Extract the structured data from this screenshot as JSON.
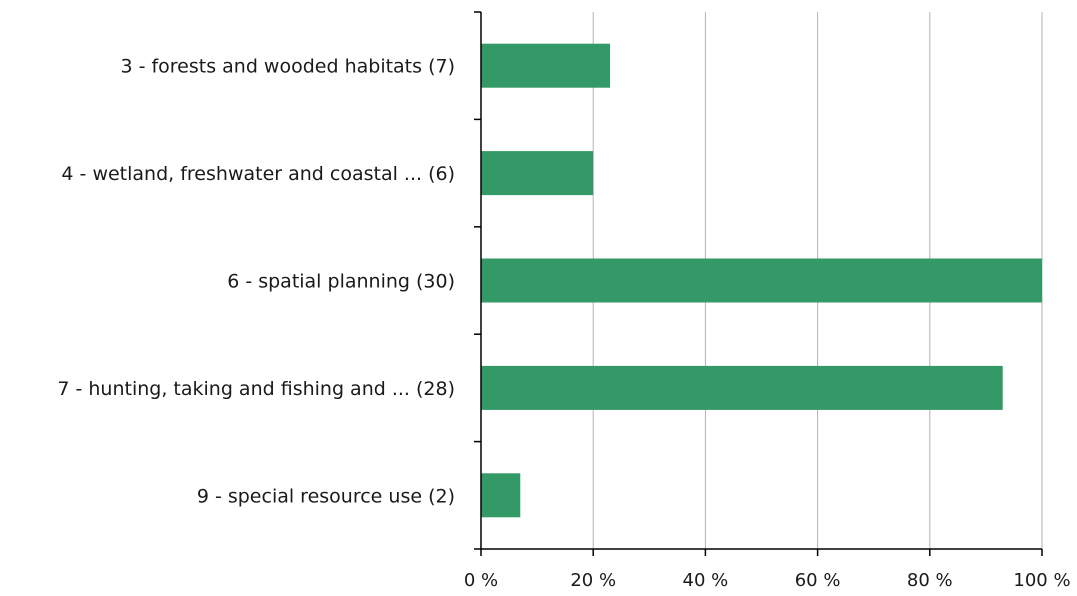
{
  "chart_data": {
    "type": "bar",
    "orientation": "horizontal",
    "categories": [
      "3 - forests and wooded habitats (7)",
      "4 - wetland, freshwater and coastal ... (6)",
      "6 - spatial planning (30)",
      "7 - hunting, taking and fishing and ... (28)",
      "9 - special resource use (2)"
    ],
    "values": [
      23,
      20,
      100,
      93,
      7
    ],
    "xlim": [
      0,
      100
    ],
    "x_ticks": [
      0,
      20,
      40,
      60,
      80,
      100
    ],
    "x_tick_labels": [
      "0 %",
      "20 %",
      "40 %",
      "60 %",
      "80 %",
      "100 %"
    ],
    "title": "",
    "xlabel": "",
    "ylabel": "",
    "grid": "vertical",
    "bar_color": "#339966",
    "grid_color": "#b3b3b3",
    "axis_color": "#000000"
  }
}
